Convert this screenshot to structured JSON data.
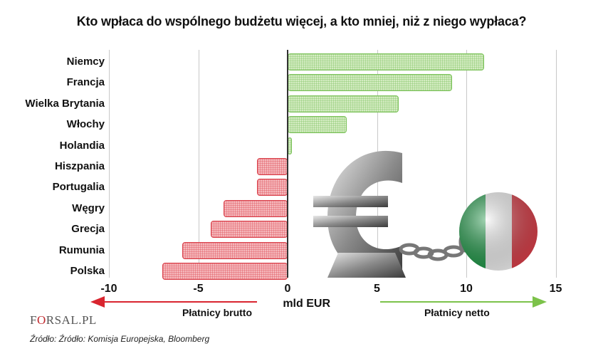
{
  "title": "Kto wpłaca do wspólnego budżetu więcej, a kto mniej, niż z niego wypłaca?",
  "axis": {
    "ticks": [
      "-10",
      "-5",
      "0",
      "5",
      "10",
      "15"
    ],
    "unit_label": "mld EUR"
  },
  "arrows": {
    "left_label": "Płatnicy brutto",
    "right_label": "Płatnicy netto",
    "left_color": "#d9252f",
    "right_color": "#7cc24a"
  },
  "logo": {
    "pre": "F",
    "o": "O",
    "post": "RSAL.PL"
  },
  "source": "Źródło: Źródło: Komisja Europejska, Bloomberg",
  "colors": {
    "positive_fill": "#d4ecc2",
    "positive_border": "#7cc25a",
    "negative_fill": "#f5b8bc",
    "negative_border": "#d9404a"
  },
  "chart_data": {
    "type": "bar",
    "orientation": "horizontal",
    "title": "Kto wpłaca do wspólnego budżetu więcej, a kto mniej, niż z niego wypłaca?",
    "xlabel": "mld EUR",
    "ylabel": "",
    "xlim": [
      -10,
      15
    ],
    "x_ticks": [
      -10,
      -5,
      0,
      5,
      10,
      15
    ],
    "grid": "vertical",
    "categories": [
      "Niemcy",
      "Francja",
      "Wielka Brytania",
      "Włochy",
      "Holandia",
      "Hiszpania",
      "Portugalia",
      "Węgry",
      "Grecja",
      "Rumunia",
      "Polska"
    ],
    "values": [
      11.0,
      9.2,
      6.2,
      3.3,
      0.2,
      -1.7,
      -1.7,
      -3.6,
      -4.3,
      -5.9,
      -7.0
    ],
    "annotations": [
      "Płatnicy brutto (arrow pointing left)",
      "Płatnicy netto (arrow pointing right)"
    ]
  }
}
